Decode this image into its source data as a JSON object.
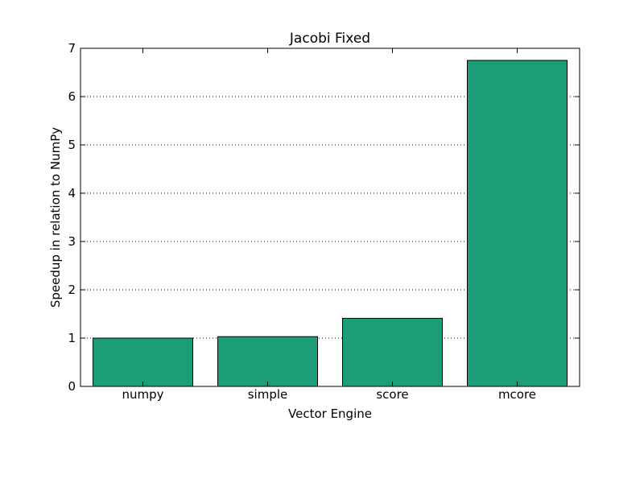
{
  "chart_data": {
    "type": "bar",
    "title": "Jacobi Fixed",
    "xlabel": "Vector Engine",
    "ylabel": "Speedup in relation to NumPy",
    "categories": [
      "numpy",
      "simple",
      "score",
      "mcore"
    ],
    "values": [
      1.0,
      1.03,
      1.41,
      6.75
    ],
    "ylim": [
      0,
      7
    ],
    "yticks": [
      0,
      1,
      2,
      3,
      4,
      5,
      6,
      7
    ],
    "grid": "horizontal dotted",
    "bar_color": "#1b9e77",
    "legend": null
  }
}
